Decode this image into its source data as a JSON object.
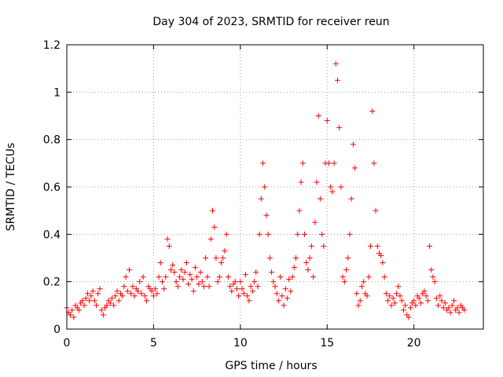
{
  "chart_data": {
    "type": "scatter",
    "title": "Day 304 of 2023, SRMTID for receiver reun",
    "xlabel": "GPS time / hours",
    "ylabel": "SRMTID / TECUs",
    "xlim": [
      0,
      24
    ],
    "ylim": [
      0,
      1.2
    ],
    "x_ticks": [
      "0",
      "5",
      "10",
      "15",
      "20"
    ],
    "x_tick_values": [
      0,
      5,
      10,
      15,
      20
    ],
    "y_ticks": [
      "0",
      "0.2",
      "0.4",
      "0.6",
      "0.8",
      "1",
      "1.2"
    ],
    "y_tick_values": [
      0,
      0.2,
      0.4,
      0.6,
      0.8,
      1.0,
      1.2
    ],
    "grid": true,
    "marker": "+",
    "color": "#ff0000",
    "series": [
      {
        "name": "SRMTID",
        "x": [
          0.0,
          0.1,
          0.2,
          0.3,
          0.4,
          0.5,
          0.6,
          0.7,
          0.8,
          0.9,
          1.0,
          1.1,
          1.2,
          1.3,
          1.4,
          1.5,
          1.6,
          1.7,
          1.8,
          1.9,
          2.0,
          2.1,
          2.2,
          2.3,
          2.4,
          2.5,
          2.6,
          2.7,
          2.8,
          2.9,
          3.0,
          3.1,
          3.2,
          3.3,
          3.4,
          3.5,
          3.6,
          3.7,
          3.8,
          3.9,
          4.0,
          4.1,
          4.2,
          4.3,
          4.4,
          4.5,
          4.6,
          4.7,
          4.8,
          4.9,
          5.0,
          5.1,
          5.2,
          5.3,
          5.4,
          5.5,
          5.6,
          5.7,
          5.8,
          5.9,
          6.0,
          6.1,
          6.2,
          6.3,
          6.4,
          6.5,
          6.6,
          6.7,
          6.8,
          6.9,
          7.0,
          7.1,
          7.2,
          7.3,
          7.4,
          7.5,
          7.6,
          7.7,
          7.8,
          7.9,
          8.0,
          8.1,
          8.2,
          8.3,
          8.4,
          8.5,
          8.6,
          8.7,
          8.8,
          8.9,
          9.0,
          9.1,
          9.2,
          9.3,
          9.4,
          9.5,
          9.6,
          9.7,
          9.8,
          9.9,
          10.0,
          10.1,
          10.2,
          10.3,
          10.4,
          10.5,
          10.6,
          10.7,
          10.8,
          10.9,
          11.0,
          11.1,
          11.2,
          11.3,
          11.4,
          11.5,
          11.6,
          11.7,
          11.8,
          11.9,
          12.0,
          12.1,
          12.2,
          12.3,
          12.4,
          12.5,
          12.6,
          12.7,
          12.8,
          12.9,
          13.0,
          13.1,
          13.2,
          13.3,
          13.4,
          13.5,
          13.6,
          13.7,
          13.8,
          13.9,
          14.0,
          14.1,
          14.2,
          14.3,
          14.4,
          14.5,
          14.6,
          14.7,
          14.8,
          14.9,
          15.0,
          15.1,
          15.2,
          15.3,
          15.4,
          15.5,
          15.6,
          15.7,
          15.8,
          15.9,
          16.0,
          16.1,
          16.2,
          16.3,
          16.4,
          16.5,
          16.6,
          16.7,
          16.8,
          16.9,
          17.0,
          17.1,
          17.2,
          17.3,
          17.4,
          17.5,
          17.6,
          17.7,
          17.8,
          17.9,
          18.0,
          18.1,
          18.2,
          18.3,
          18.4,
          18.5,
          18.6,
          18.7,
          18.8,
          18.9,
          19.0,
          19.1,
          19.2,
          19.3,
          19.4,
          19.5,
          19.6,
          19.7,
          19.8,
          19.9,
          20.0,
          20.1,
          20.2,
          20.3,
          20.4,
          20.5,
          20.6,
          20.7,
          20.8,
          20.9,
          21.0,
          21.1,
          21.2,
          21.3,
          21.4,
          21.5,
          21.6,
          21.7,
          21.8,
          21.9,
          22.0,
          22.1,
          22.2,
          22.3,
          22.4,
          22.5,
          22.6,
          22.7,
          22.8,
          22.9
        ],
        "y": [
          0.09,
          0.07,
          0.06,
          0.08,
          0.05,
          0.1,
          0.09,
          0.08,
          0.11,
          0.12,
          0.1,
          0.13,
          0.15,
          0.12,
          0.14,
          0.16,
          0.12,
          0.1,
          0.15,
          0.17,
          0.08,
          0.06,
          0.09,
          0.1,
          0.12,
          0.11,
          0.13,
          0.1,
          0.14,
          0.16,
          0.12,
          0.15,
          0.14,
          0.18,
          0.22,
          0.16,
          0.25,
          0.15,
          0.18,
          0.14,
          0.17,
          0.16,
          0.2,
          0.15,
          0.22,
          0.14,
          0.12,
          0.18,
          0.17,
          0.16,
          0.14,
          0.17,
          0.15,
          0.22,
          0.28,
          0.2,
          0.17,
          0.22,
          0.38,
          0.35,
          0.25,
          0.27,
          0.24,
          0.2,
          0.18,
          0.22,
          0.25,
          0.21,
          0.24,
          0.28,
          0.19,
          0.23,
          0.21,
          0.16,
          0.26,
          0.22,
          0.19,
          0.24,
          0.2,
          0.18,
          0.3,
          0.22,
          0.18,
          0.38,
          0.5,
          0.43,
          0.3,
          0.2,
          0.22,
          0.28,
          0.3,
          0.33,
          0.4,
          0.22,
          0.18,
          0.16,
          0.19,
          0.2,
          0.17,
          0.14,
          0.2,
          0.17,
          0.15,
          0.23,
          0.14,
          0.12,
          0.18,
          0.16,
          0.2,
          0.24,
          0.18,
          0.4,
          0.55,
          0.7,
          0.6,
          0.48,
          0.4,
          0.3,
          0.24,
          0.2,
          0.18,
          0.15,
          0.12,
          0.22,
          0.14,
          0.1,
          0.17,
          0.13,
          0.21,
          0.16,
          0.22,
          0.26,
          0.3,
          0.4,
          0.5,
          0.62,
          0.7,
          0.4,
          0.28,
          0.25,
          0.3,
          0.35,
          0.22,
          0.45,
          0.62,
          0.9,
          0.55,
          0.4,
          0.35,
          0.7,
          0.88,
          0.7,
          0.6,
          0.58,
          0.7,
          1.12,
          1.05,
          0.85,
          0.6,
          0.22,
          0.2,
          0.25,
          0.3,
          0.4,
          0.55,
          0.78,
          0.68,
          0.15,
          0.1,
          0.12,
          0.18,
          0.2,
          0.15,
          0.14,
          0.22,
          0.35,
          0.92,
          0.7,
          0.5,
          0.35,
          0.32,
          0.31,
          0.28,
          0.22,
          0.15,
          0.12,
          0.14,
          0.1,
          0.13,
          0.11,
          0.15,
          0.18,
          0.14,
          0.12,
          0.08,
          0.1,
          0.06,
          0.05,
          0.09,
          0.11,
          0.12,
          0.1,
          0.14,
          0.13,
          0.11,
          0.15,
          0.16,
          0.14,
          0.12,
          0.35,
          0.25,
          0.22,
          0.2,
          0.13,
          0.1,
          0.14,
          0.12,
          0.09,
          0.11,
          0.08,
          0.09,
          0.07,
          0.1,
          0.12,
          0.08,
          0.09,
          0.07,
          0.1,
          0.09,
          0.08
        ]
      }
    ]
  }
}
